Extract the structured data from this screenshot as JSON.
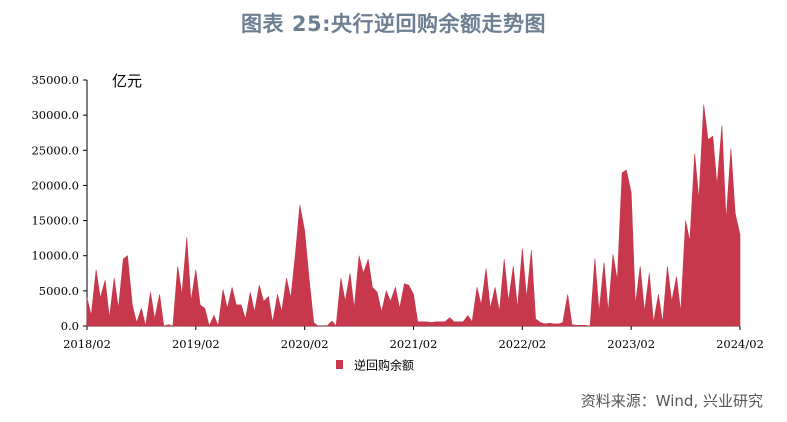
{
  "title": "图表 25:央行逆回购余额走势图",
  "source": "资料来源：Wind, 兴业研究",
  "colors": {
    "series": "#c8384c",
    "title": "#6d7f93",
    "axis": "#000000"
  },
  "chart_data": {
    "type": "area",
    "title": "图表 25:央行逆回购余额走势图",
    "ylabel": "亿元",
    "xlabel": "",
    "ylim": [
      0,
      35000
    ],
    "yticks": [
      "35000.0",
      "30000.0",
      "25000.0",
      "20000.0",
      "15000.0",
      "10000.0",
      "5000.0",
      "0.0"
    ],
    "ytick_values": [
      35000,
      30000,
      25000,
      20000,
      15000,
      10000,
      5000,
      0
    ],
    "xticks": [
      "2018/02",
      "2019/02",
      "2020/02",
      "2021/02",
      "2022/02",
      "2023/02",
      "2024/02"
    ],
    "x_range": [
      "2018-02",
      "2024-02"
    ],
    "legend": "bottom-center",
    "grid": false,
    "series": [
      {
        "name": "逆回购余额",
        "unit": "亿元",
        "points": [
          [
            "2018-02",
            4000
          ],
          [
            "2018-02-15",
            1500
          ],
          [
            "2018-03",
            8000
          ],
          [
            "2018-03-15",
            4000
          ],
          [
            "2018-04",
            6500
          ],
          [
            "2018-04-15",
            1200
          ],
          [
            "2018-05",
            6800
          ],
          [
            "2018-05-15",
            2500
          ],
          [
            "2018-06",
            9500
          ],
          [
            "2018-06-15",
            10000
          ],
          [
            "2018-07",
            3000
          ],
          [
            "2018-07-15",
            500
          ],
          [
            "2018-08",
            2500
          ],
          [
            "2018-08-15",
            0
          ],
          [
            "2018-09",
            4800
          ],
          [
            "2018-09-15",
            1000
          ],
          [
            "2018-10",
            4500
          ],
          [
            "2018-10-15",
            0
          ],
          [
            "2018-11",
            200
          ],
          [
            "2018-11-15",
            0
          ],
          [
            "2018-12",
            8500
          ],
          [
            "2018-12-15",
            4500
          ],
          [
            "2019-01",
            12600
          ],
          [
            "2019-01-15",
            3500
          ],
          [
            "2019-02",
            8000
          ],
          [
            "2019-02-15",
            3000
          ],
          [
            "2019-03",
            2500
          ],
          [
            "2019-03-15",
            0
          ],
          [
            "2019-04",
            1500
          ],
          [
            "2019-04-15",
            0
          ],
          [
            "2019-05",
            5200
          ],
          [
            "2019-05-15",
            2500
          ],
          [
            "2019-06",
            5500
          ],
          [
            "2019-06-15",
            3000
          ],
          [
            "2019-07",
            3000
          ],
          [
            "2019-07-15",
            1000
          ],
          [
            "2019-08",
            4800
          ],
          [
            "2019-08-15",
            2000
          ],
          [
            "2019-09",
            5800
          ],
          [
            "2019-09-15",
            3500
          ],
          [
            "2019-10",
            4200
          ],
          [
            "2019-10-15",
            500
          ],
          [
            "2019-11",
            4500
          ],
          [
            "2019-11-15",
            2000
          ],
          [
            "2019-12",
            6800
          ],
          [
            "2019-12-15",
            4000
          ],
          [
            "2020-01",
            10500
          ],
          [
            "2020-01-15",
            17200
          ],
          [
            "2020-02",
            13500
          ],
          [
            "2020-02-15",
            7000
          ],
          [
            "2020-03",
            500
          ],
          [
            "2020-03-15",
            0
          ],
          [
            "2020-04",
            0
          ],
          [
            "2020-04-15",
            0
          ],
          [
            "2020-05",
            700
          ],
          [
            "2020-05-15",
            0
          ],
          [
            "2020-06",
            6800
          ],
          [
            "2020-06-15",
            3500
          ],
          [
            "2020-07",
            7500
          ],
          [
            "2020-07-15",
            2500
          ],
          [
            "2020-08",
            10000
          ],
          [
            "2020-08-15",
            7500
          ],
          [
            "2020-09",
            9500
          ],
          [
            "2020-09-15",
            5500
          ],
          [
            "2020-10",
            4800
          ],
          [
            "2020-10-15",
            2000
          ],
          [
            "2020-11",
            5000
          ],
          [
            "2020-11-15",
            3500
          ],
          [
            "2020-12",
            5500
          ],
          [
            "2020-12-15",
            2500
          ],
          [
            "2021-01",
            6000
          ],
          [
            "2021-01-15",
            5800
          ],
          [
            "2021-02",
            4500
          ],
          [
            "2021-02-15",
            600
          ],
          [
            "2021-03",
            600
          ],
          [
            "2021-03-15",
            600
          ],
          [
            "2021-04",
            500
          ],
          [
            "2021-04-15",
            600
          ],
          [
            "2021-05",
            600
          ],
          [
            "2021-05-15",
            600
          ],
          [
            "2021-06",
            1200
          ],
          [
            "2021-06-15",
            600
          ],
          [
            "2021-07",
            600
          ],
          [
            "2021-07-15",
            600
          ],
          [
            "2021-08",
            1500
          ],
          [
            "2021-08-15",
            600
          ],
          [
            "2021-09",
            5500
          ],
          [
            "2021-09-15",
            3000
          ],
          [
            "2021-10",
            8200
          ],
          [
            "2021-10-15",
            2500
          ],
          [
            "2021-11",
            5500
          ],
          [
            "2021-11-15",
            2000
          ],
          [
            "2021-12",
            9500
          ],
          [
            "2021-12-15",
            3500
          ],
          [
            "2022-01",
            8500
          ],
          [
            "2022-01-15",
            2500
          ],
          [
            "2022-02",
            11000
          ],
          [
            "2022-02-15",
            4000
          ],
          [
            "2022-03",
            10800
          ],
          [
            "2022-03-15",
            1000
          ],
          [
            "2022-04",
            500
          ],
          [
            "2022-04-15",
            300
          ],
          [
            "2022-05",
            400
          ],
          [
            "2022-05-15",
            300
          ],
          [
            "2022-06",
            300
          ],
          [
            "2022-06-15",
            500
          ],
          [
            "2022-07",
            4500
          ],
          [
            "2022-07-15",
            200
          ],
          [
            "2022-08",
            100
          ],
          [
            "2022-08-15",
            100
          ],
          [
            "2022-09",
            100
          ],
          [
            "2022-09-15",
            0
          ],
          [
            "2022-10",
            9600
          ],
          [
            "2022-10-15",
            2000
          ],
          [
            "2022-11",
            9000
          ],
          [
            "2022-11-15",
            2000
          ],
          [
            "2022-12",
            10200
          ],
          [
            "2022-12-15",
            6500
          ],
          [
            "2023-01",
            21800
          ],
          [
            "2023-01-15",
            22200
          ],
          [
            "2023-02",
            19000
          ],
          [
            "2023-02-15",
            3000
          ],
          [
            "2023-03",
            8500
          ],
          [
            "2023-03-15",
            2000
          ],
          [
            "2023-04",
            7500
          ],
          [
            "2023-04-15",
            500
          ],
          [
            "2023-05",
            4500
          ],
          [
            "2023-05-15",
            500
          ],
          [
            "2023-06",
            8500
          ],
          [
            "2023-06-15",
            3500
          ],
          [
            "2023-07",
            7000
          ],
          [
            "2023-07-15",
            2000
          ],
          [
            "2023-08",
            15000
          ],
          [
            "2023-08-15",
            12000
          ],
          [
            "2023-09",
            24500
          ],
          [
            "2023-09-15",
            18000
          ],
          [
            "2023-10",
            31500
          ],
          [
            "2023-10-15",
            26500
          ],
          [
            "2023-11",
            27000
          ],
          [
            "2023-11-15",
            20000
          ],
          [
            "2023-12",
            28500
          ],
          [
            "2023-12-15",
            15000
          ],
          [
            "2024-01",
            25200
          ],
          [
            "2024-01-15",
            16000
          ],
          [
            "2024-02",
            13000
          ]
        ]
      }
    ]
  }
}
